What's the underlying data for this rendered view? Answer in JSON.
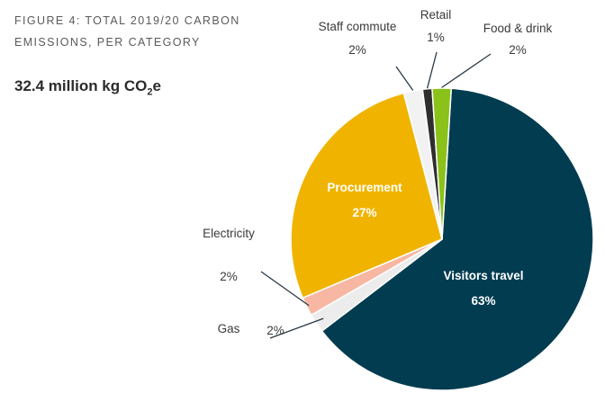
{
  "chart_data": {
    "type": "pie",
    "title": "FIGURE 4: TOTAL 2019/20 CARBON EMISSIONS, PER CATEGORY",
    "subtitle_main": "32.4 million kg CO",
    "subtitle_sub": "2",
    "subtitle_tail": "e",
    "slices": [
      {
        "label": "Visitors travel",
        "value": 63,
        "value_label": "63%",
        "color": "#023c50"
      },
      {
        "label": "Gas",
        "value": 2,
        "value_label": "2%",
        "color": "#ececec"
      },
      {
        "label": "Electricity",
        "value": 2,
        "value_label": "2%",
        "color": "#f7b7a3"
      },
      {
        "label": "Procurement",
        "value": 27,
        "value_label": "27%",
        "color": "#f0b400"
      },
      {
        "label": "Staff commute",
        "value": 2,
        "value_label": "2%",
        "color": "#f2f2f2"
      },
      {
        "label": "Retail",
        "value": 1,
        "value_label": "1%",
        "color": "#2e2e2e"
      },
      {
        "label": "Food & drink",
        "value": 2,
        "value_label": "2%",
        "color": "#8bc21a"
      }
    ]
  }
}
